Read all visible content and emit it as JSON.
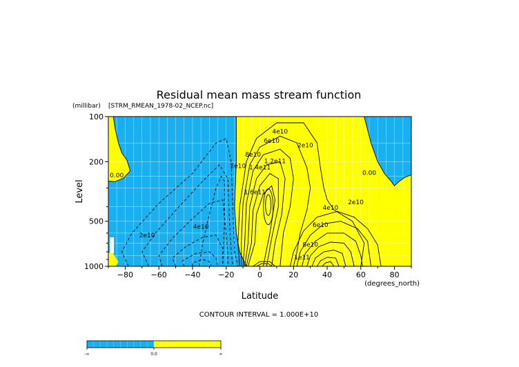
{
  "chart_data": {
    "type": "heatmap",
    "title": "Residual mean mass stream function",
    "subtitle": "[STRM_RMEAN_1978-02_NCEP.nc]",
    "xlabel": "Latitude",
    "x_units": "(degrees_north)",
    "ylabel": "Level",
    "y_units": "(millibar)",
    "y_scale": "log",
    "y_inverted": true,
    "xlim": [
      -90,
      90
    ],
    "ylim": [
      1000,
      100
    ],
    "x_ticks": [
      -80,
      -60,
      -40,
      -20,
      0,
      20,
      40,
      60,
      80
    ],
    "y_ticks": [
      100,
      200,
      500,
      1000
    ],
    "grid": true,
    "contour_interval_label": "CONTOUR INTERVAL = 1.000E+10",
    "colors": {
      "negative": "#1ab0f0",
      "positive": "#ffff00",
      "contour": "#000000"
    },
    "contour_labels": [
      {
        "text": "0.00",
        "lat": -85,
        "level": 255
      },
      {
        "text": "0.00",
        "lat": 65,
        "level": 245
      },
      {
        "text": "2e10",
        "lat": -67,
        "level": 640
      },
      {
        "text": "4e10",
        "lat": -35,
        "level": 560
      },
      {
        "text": "2e10",
        "lat": -13,
        "level": 220
      },
      {
        "text": "6e10",
        "lat": 7,
        "level": 150
      },
      {
        "text": "4e10",
        "lat": 12,
        "level": 130
      },
      {
        "text": "2e10",
        "lat": 27,
        "level": 160
      },
      {
        "text": "8e10",
        "lat": -4,
        "level": 185
      },
      {
        "text": "1.2e11",
        "lat": 9,
        "level": 205
      },
      {
        "text": "1.4e11",
        "lat": 0,
        "level": 225
      },
      {
        "text": "1.6e11",
        "lat": -3,
        "level": 330
      },
      {
        "text": "4e10",
        "lat": 42,
        "level": 420
      },
      {
        "text": "2e10",
        "lat": 57,
        "level": 385
      },
      {
        "text": "6e10",
        "lat": 36,
        "level": 545
      },
      {
        "text": "8e10",
        "lat": 30,
        "level": 740
      },
      {
        "text": "1e11",
        "lat": 25,
        "level": 900
      }
    ],
    "colorbar": {
      "labels": [
        "-∞",
        "0.0",
        "∞"
      ],
      "colors": [
        "#1ab0f0",
        "#ffff00"
      ]
    }
  }
}
